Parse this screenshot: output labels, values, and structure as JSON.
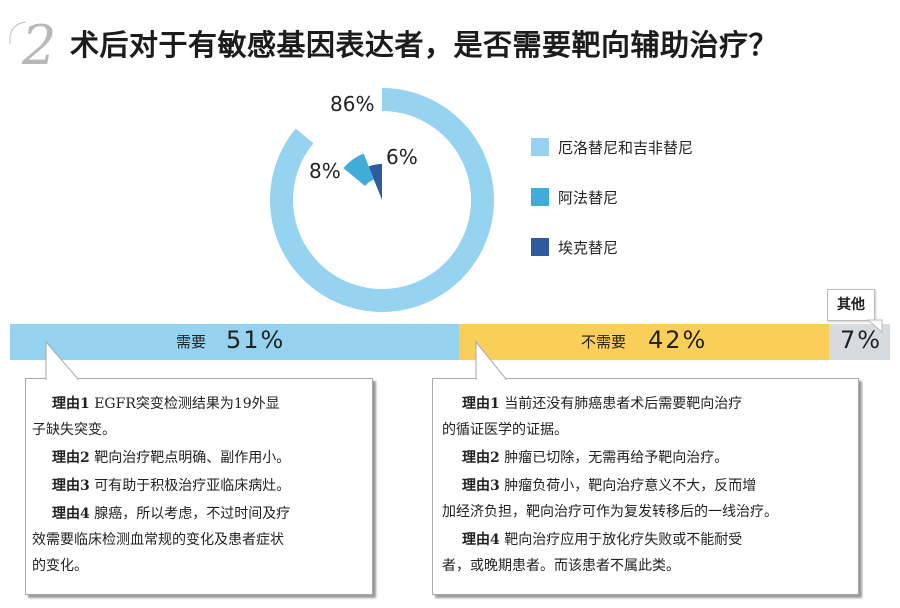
{
  "question": {
    "number": "2",
    "title": "术后对于有敏感基因表达者，是否需要靶向辅助治疗？"
  },
  "chart_data": [
    {
      "type": "pie",
      "slices": [
        {
          "name": "厄洛替尼和吉非替尼",
          "value": 86,
          "label": "86%",
          "color": "#96d3f0"
        },
        {
          "name": "阿法替尼",
          "value": 8,
          "label": "8%",
          "color": "#41abd9"
        },
        {
          "name": "埃克替尼",
          "value": 6,
          "label": "6%",
          "color": "#2e5aa0"
        }
      ]
    },
    {
      "type": "bar",
      "orientation": "horizontal-stacked",
      "categories": [
        "需要",
        "不需要",
        "其他"
      ],
      "values": [
        51,
        42,
        7
      ],
      "labels": [
        "51%",
        "42%",
        "7%"
      ],
      "colors": [
        "#96d3f0",
        "#f9cf5a",
        "#d7dbdd"
      ]
    }
  ],
  "reasons_yes": [
    {
      "tag": "理由1",
      "line1": "EGFR突变检测结果为19外显",
      "line2": "子缺失突变。"
    },
    {
      "tag": "理由2",
      "line1": "靶向治疗靶点明确、副作用小。",
      "line2": ""
    },
    {
      "tag": "理由3",
      "line1": "可有助于积极治疗亚临床病灶。",
      "line2": ""
    },
    {
      "tag": "理由4",
      "line1": "腺癌，所以考虑，不过时间及疗",
      "line2": "效需要临床检测血常规的变化及患者症状",
      "line3": "的变化。"
    }
  ],
  "reasons_no": [
    {
      "tag": "理由1",
      "line1": "当前还没有肺癌患者术后需要靶向治疗",
      "line2": "的循证医学的证据。"
    },
    {
      "tag": "理由2",
      "line1": "肿瘤已切除，无需再给予靶向治疗。",
      "line2": ""
    },
    {
      "tag": "理由3",
      "line1": "肿瘤负荷小，靶向治疗意义不大，反而增",
      "line2": "加经济负担，靶向治疗可作为复发转移后的一线治疗。"
    },
    {
      "tag": "理由4",
      "line1": "靶向治疗应用于放化疗失败或不能耐受",
      "line2": "者，或晚期患者。而该患者不属此类。"
    }
  ]
}
